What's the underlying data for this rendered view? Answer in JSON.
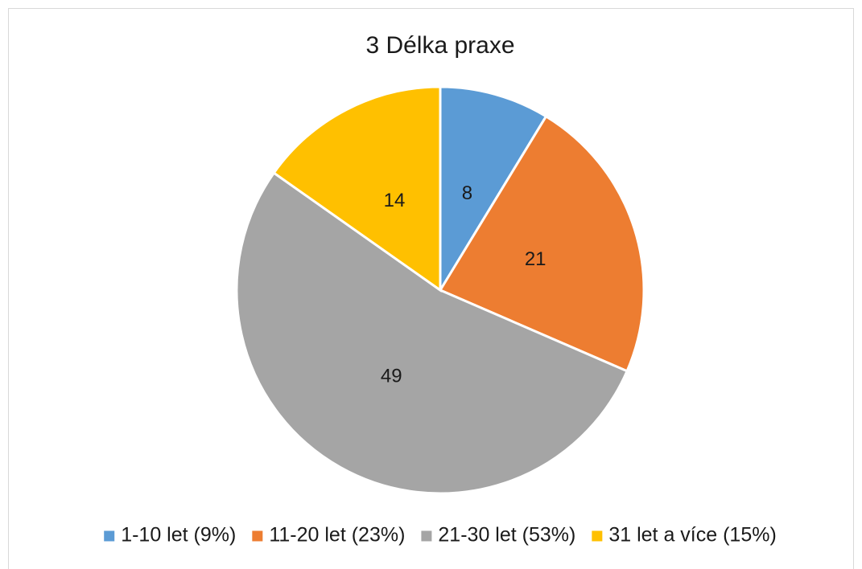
{
  "chart_data": {
    "type": "pie",
    "title": "3 Délka praxe",
    "categories": [
      "1-10 let (9%)",
      "11-20 let (23%)",
      "21-30 let (53%)",
      "31 let a více (15%)"
    ],
    "values": [
      8,
      21,
      49,
      14
    ],
    "colors": [
      "#5b9bd5",
      "#ed7d31",
      "#a5a5a5",
      "#ffc000"
    ],
    "legend": "bottom"
  }
}
